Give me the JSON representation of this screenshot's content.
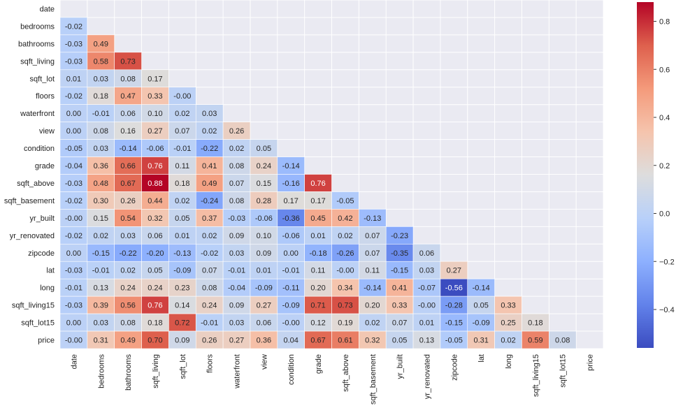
{
  "chart_data": {
    "type": "heatmap",
    "title": "",
    "labels": [
      "date",
      "bedrooms",
      "bathrooms",
      "sqft_living",
      "sqft_lot",
      "floors",
      "waterfront",
      "view",
      "condition",
      "grade",
      "sqft_above",
      "sqft_basement",
      "yr_built",
      "yr_renovated",
      "zipcode",
      "lat",
      "long",
      "sqft_living15",
      "sqft_lot15",
      "price"
    ],
    "mask": "upper-triangle-including-diagonal",
    "matrix": [
      [],
      [
        -0.02
      ],
      [
        -0.03,
        0.49
      ],
      [
        -0.03,
        0.58,
        0.73
      ],
      [
        0.01,
        0.03,
        0.08,
        0.17
      ],
      [
        -0.02,
        0.18,
        0.47,
        0.33,
        -0.0
      ],
      [
        0.0,
        -0.01,
        0.06,
        0.1,
        0.02,
        0.03
      ],
      [
        0.0,
        0.08,
        0.16,
        0.27,
        0.07,
        0.02,
        0.26
      ],
      [
        -0.05,
        0.03,
        -0.14,
        -0.06,
        -0.01,
        -0.22,
        0.02,
        0.05
      ],
      [
        -0.04,
        0.36,
        0.66,
        0.76,
        0.11,
        0.41,
        0.08,
        0.24,
        -0.14
      ],
      [
        -0.03,
        0.48,
        0.67,
        0.88,
        0.18,
        0.49,
        0.07,
        0.15,
        -0.16,
        0.76
      ],
      [
        -0.02,
        0.3,
        0.26,
        0.44,
        0.02,
        -0.24,
        0.08,
        0.28,
        0.17,
        0.17,
        -0.05
      ],
      [
        -0.0,
        0.15,
        0.54,
        0.32,
        0.05,
        0.37,
        -0.03,
        -0.06,
        -0.36,
        0.45,
        0.42,
        -0.13
      ],
      [
        -0.02,
        0.02,
        0.03,
        0.06,
        0.01,
        0.02,
        0.09,
        0.1,
        -0.06,
        0.01,
        0.02,
        0.07,
        -0.23
      ],
      [
        0.0,
        -0.15,
        -0.22,
        -0.2,
        -0.13,
        -0.02,
        0.03,
        0.09,
        0.0,
        -0.18,
        -0.26,
        0.07,
        -0.35,
        0.06
      ],
      [
        -0.03,
        -0.01,
        0.02,
        0.05,
        -0.09,
        0.07,
        -0.01,
        0.01,
        -0.01,
        0.11,
        -0.0,
        0.11,
        -0.15,
        0.03,
        0.27
      ],
      [
        -0.01,
        0.13,
        0.24,
        0.24,
        0.23,
        0.08,
        -0.04,
        -0.09,
        -0.11,
        0.2,
        0.34,
        -0.14,
        0.41,
        -0.07,
        -0.56,
        -0.14
      ],
      [
        -0.03,
        0.39,
        0.56,
        0.76,
        0.14,
        0.24,
        0.09,
        0.27,
        -0.09,
        0.71,
        0.73,
        0.2,
        0.33,
        -0.0,
        -0.28,
        0.05,
        0.33
      ],
      [
        0.0,
        0.03,
        0.08,
        0.18,
        0.72,
        -0.01,
        0.03,
        0.06,
        -0.0,
        0.12,
        0.19,
        0.02,
        0.07,
        0.01,
        -0.15,
        -0.09,
        0.25,
        0.18
      ],
      [
        -0.0,
        0.31,
        0.49,
        0.7,
        0.09,
        0.26,
        0.27,
        0.36,
        0.04,
        0.67,
        0.61,
        0.32,
        0.05,
        0.13,
        -0.05,
        0.31,
        0.02,
        0.59,
        0.08
      ]
    ],
    "colormap": "coolwarm",
    "vmin": -0.56,
    "vmax": 0.88,
    "colorbar": {
      "ticks": [
        -0.4,
        -0.2,
        0.0,
        0.2,
        0.4,
        0.6,
        0.8
      ],
      "tick_labels": [
        "−0.4",
        "−0.2",
        "0.0",
        "0.2",
        "0.4",
        "0.6",
        "0.8"
      ]
    },
    "annotation_format": "0.00",
    "grid": true,
    "background": "#eaeaf2"
  }
}
